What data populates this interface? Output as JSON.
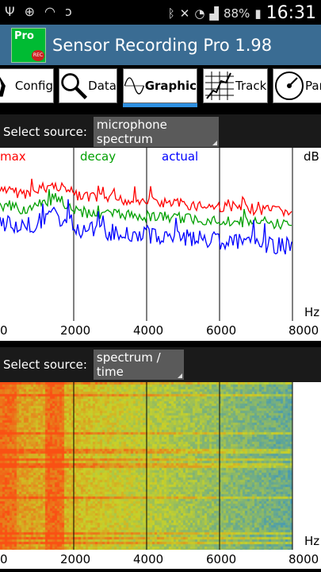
{
  "status": {
    "battery": "88%",
    "time": "16:31"
  },
  "app": {
    "title": "Sensor Recording Pro 1.98",
    "icon_text": "Pro",
    "icon_rec": "REC"
  },
  "tabs": [
    {
      "label": "Config",
      "icon": "wrench-icon"
    },
    {
      "label": "Data",
      "icon": "magnifier-icon"
    },
    {
      "label": "Graphic",
      "icon": "sine-wave-icon",
      "active": true
    },
    {
      "label": "Track",
      "icon": "track-chart-icon"
    },
    {
      "label": "Par",
      "icon": "gauge-icon"
    }
  ],
  "spectrum": {
    "select_label": "Select source:",
    "source": "microphone spectrum",
    "legend": {
      "max": "max",
      "decay": "decay",
      "actual": "actual"
    },
    "colors": {
      "max": "#ff0000",
      "decay": "#00a000",
      "actual": "#0000ff"
    },
    "unit_y": "dB",
    "unit_x": "Hz"
  },
  "waterfall": {
    "select_label": "Select source:",
    "source": "spectrum / time",
    "unit_x": "Hz"
  },
  "x_ticks": [
    "0",
    "2000",
    "4000",
    "6000",
    "8000"
  ]
}
